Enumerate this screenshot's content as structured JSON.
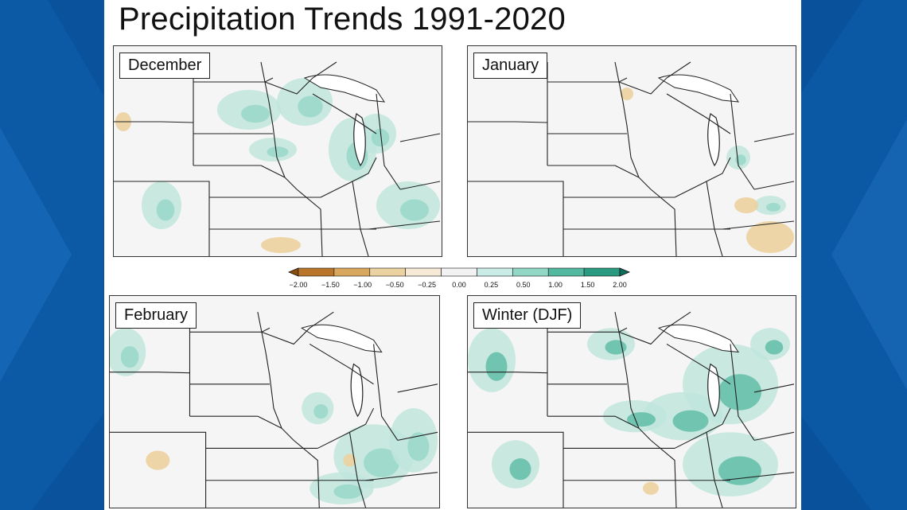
{
  "title": "Precipitation Trends 1991-2020",
  "panels": [
    {
      "label": "December"
    },
    {
      "label": "January"
    },
    {
      "label": "February"
    },
    {
      "label": "Winter (DJF)"
    }
  ],
  "colorbar": {
    "ticks": [
      "−2.00",
      "−1.50",
      "−1.00",
      "−0.50",
      "−0.25",
      "0.00",
      "0.25",
      "0.50",
      "1.00",
      "1.50",
      "2.00"
    ],
    "colors": [
      "#8a4d0a",
      "#b9762a",
      "#d8a75e",
      "#ecd2a0",
      "#f6ead6",
      "#f2f2f2",
      "#c9ece6",
      "#92d6c6",
      "#53b8a0",
      "#2a9a80",
      "#0d6e5c"
    ]
  }
}
